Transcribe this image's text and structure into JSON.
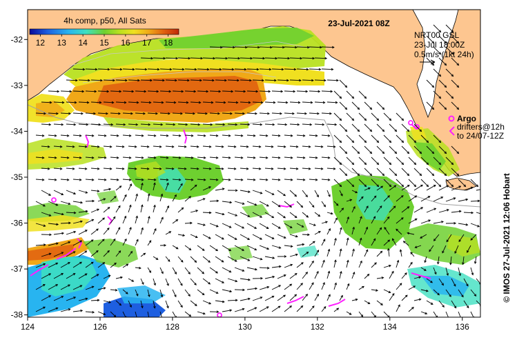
{
  "map": {
    "title": "23-Jul-2021 08Z",
    "colorbar": {
      "title": "4h comp, p50, All Sats",
      "ticks": [
        "12",
        "13",
        "14",
        "15",
        "16",
        "17",
        "18"
      ],
      "vmin": 11.5,
      "vmax": 18.5,
      "colors": [
        "#0a0a9a",
        "#1e5fe0",
        "#28b4f0",
        "#3ee0c0",
        "#6ed030",
        "#b8e020",
        "#f0e020",
        "#f0a818",
        "#e06010",
        "#c02808"
      ]
    },
    "info_box": {
      "line1": "NRT00 GSL",
      "line2": "23-Jul 18:00Z",
      "line3": "0.5m/s (1kt 24h)"
    },
    "argo_label": "Argo",
    "drifter_line1": "drifters@12h",
    "drifter_line2": "to 24/07-12Z",
    "credit": "© IMOS 27-Jul-2021 12:06 Hobart",
    "x_ticks": [
      "124",
      "126",
      "128",
      "130",
      "132",
      "134",
      "136"
    ],
    "y_ticks": [
      "-32",
      "-33",
      "-34",
      "-35",
      "-36",
      "-37",
      "-38"
    ],
    "lon_range": [
      124,
      136.5
    ],
    "lat_range": [
      -38.05,
      -31.35
    ],
    "colors": {
      "land": "#fdc690",
      "ocean": "#ffffff",
      "argo": "#ff20ff",
      "arrow": "#000000",
      "isobath": "#a0a0a0"
    }
  }
}
